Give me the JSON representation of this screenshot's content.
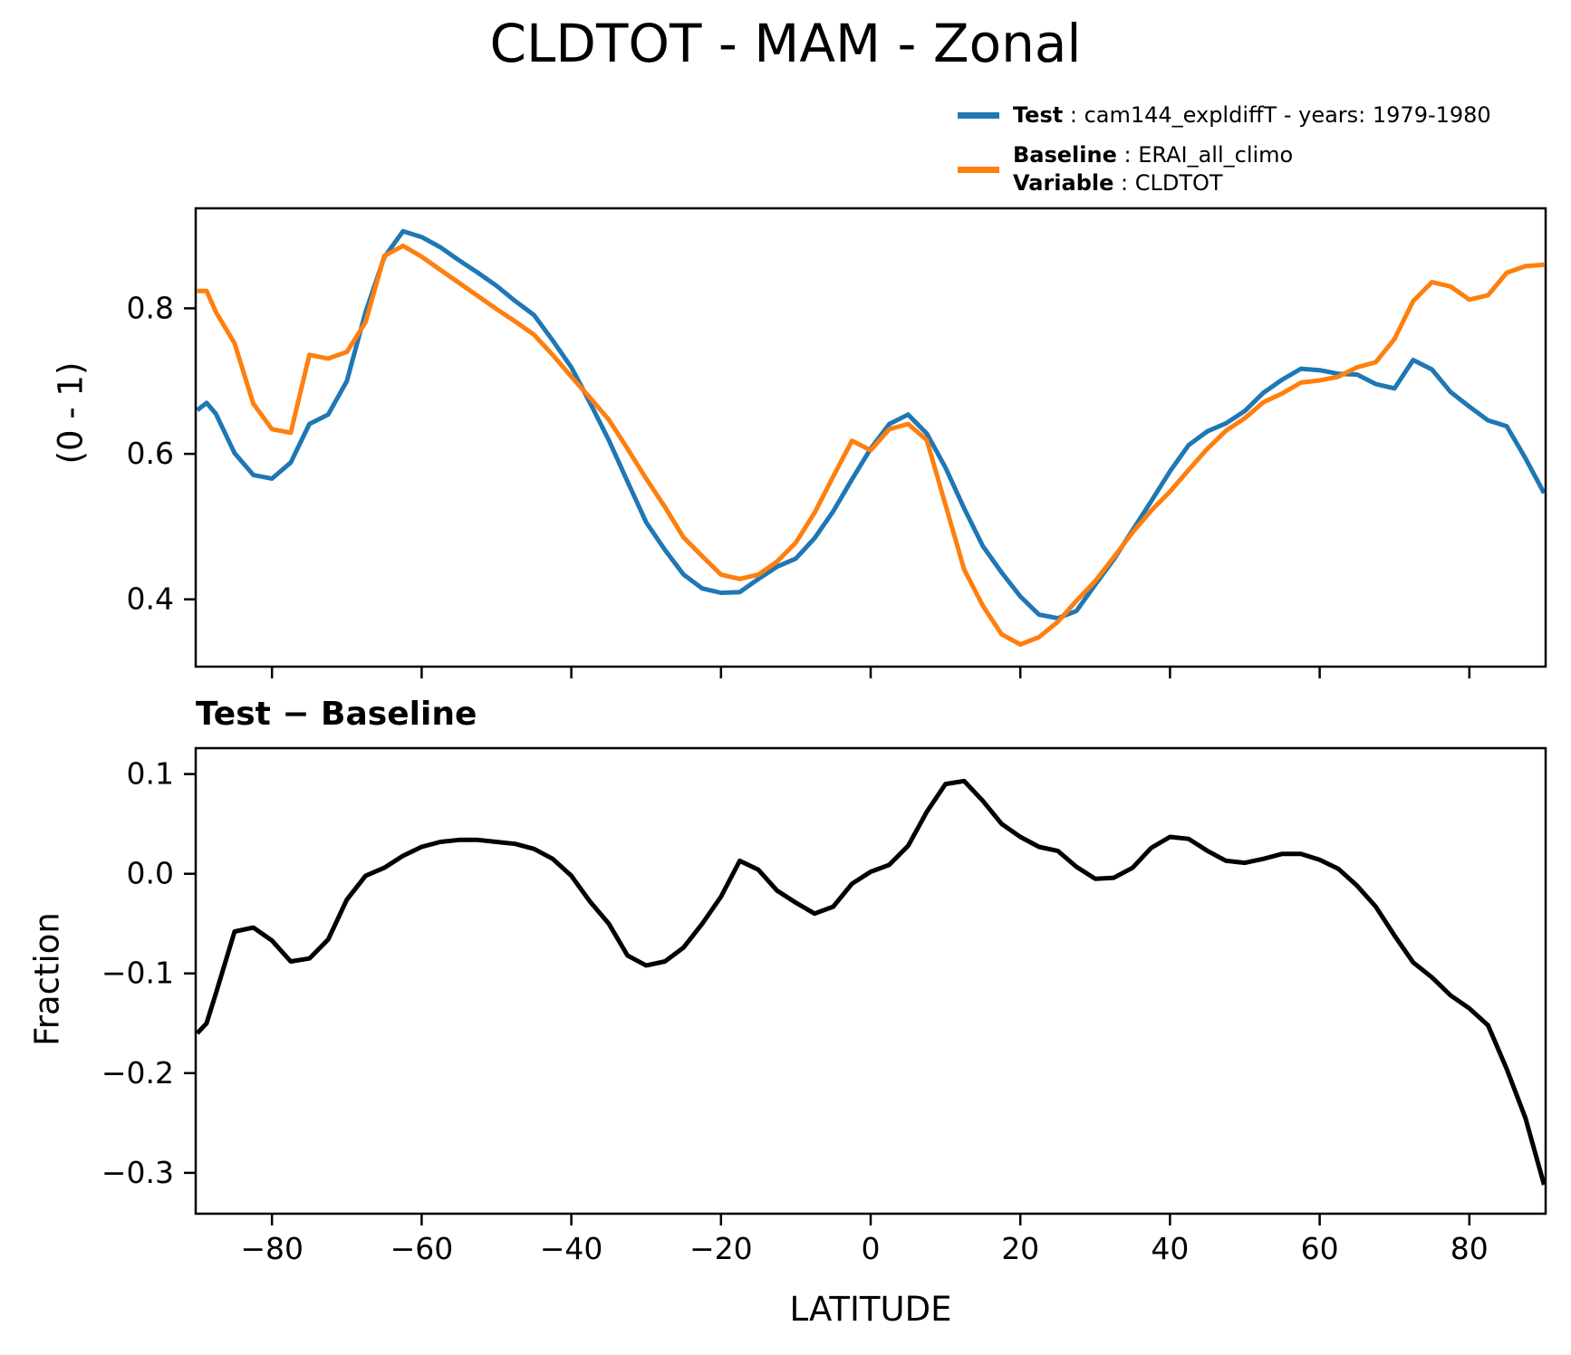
{
  "figure_title": "CLDTOT - MAM - Zonal",
  "legend": {
    "test_name": "Test",
    "test_desc": " : cam144_expldiffT - years: 1979-1980",
    "test_color": "#1f77b4",
    "baseline_name": "Baseline",
    "baseline_desc": " : ERAI_all_climo",
    "variable_name": "Variable",
    "variable_desc": " : CLDTOT",
    "baseline_color": "#ff7f0e"
  },
  "chart_data": {
    "type": "line",
    "x_axis_label": "LATITUDE",
    "grid": false,
    "lat": [
      -90,
      -88.75,
      -87.5,
      -85,
      -82.5,
      -80,
      -77.5,
      -75,
      -72.5,
      -70,
      -67.5,
      -65,
      -62.5,
      -60,
      -57.5,
      -55,
      -52.5,
      -50,
      -47.5,
      -45,
      -42.5,
      -40,
      -37.5,
      -35,
      -32.5,
      -30,
      -27.5,
      -25,
      -22.5,
      -20,
      -17.5,
      -15,
      -12.5,
      -10,
      -7.5,
      -5,
      -2.5,
      0,
      2.5,
      5,
      7.5,
      10,
      12.5,
      15,
      17.5,
      20,
      22.5,
      25,
      27.5,
      30,
      32.5,
      35,
      37.5,
      40,
      42.5,
      45,
      47.5,
      50,
      52.5,
      55,
      57.5,
      60,
      62.5,
      65,
      67.5,
      70,
      72.5,
      75,
      77.5,
      80,
      82.5,
      85,
      87.5,
      90
    ],
    "panels": [
      {
        "name": "zonal-mean-panel",
        "ylabel": "(0 - 1)",
        "xlim": [
          -90.2,
          90.2
        ],
        "ylim": [
          0.3075,
          0.9375
        ],
        "xticks": {
          "values": [
            -80,
            -60,
            -40,
            -20,
            0,
            20,
            40,
            60,
            80
          ],
          "labels": null
        },
        "yticks": {
          "values": [
            0.8,
            0.6,
            0.4
          ],
          "labels": [
            "0.8",
            "0.6",
            "0.4"
          ]
        },
        "series": [
          {
            "name": "Test",
            "data_name": "test-line",
            "color": "#1f77b4",
            "width": 5,
            "values": [
              0.66,
              0.67,
              0.655,
              0.601,
              0.571,
              0.566,
              0.588,
              0.641,
              0.654,
              0.7,
              0.795,
              0.87,
              0.906,
              0.898,
              0.884,
              0.866,
              0.849,
              0.831,
              0.81,
              0.791,
              0.756,
              0.719,
              0.67,
              0.619,
              0.562,
              0.506,
              0.468,
              0.434,
              0.415,
              0.409,
              0.41,
              0.428,
              0.445,
              0.456,
              0.484,
              0.521,
              0.565,
              0.607,
              0.641,
              0.654,
              0.628,
              0.581,
              0.525,
              0.473,
              0.437,
              0.404,
              0.379,
              0.374,
              0.384,
              0.42,
              0.455,
              0.495,
              0.535,
              0.576,
              0.612,
              0.631,
              0.642,
              0.659,
              0.684,
              0.702,
              0.717,
              0.715,
              0.71,
              0.709,
              0.696,
              0.69,
              0.729,
              0.716,
              0.685,
              0.665,
              0.646,
              0.638,
              0.594,
              0.546
            ]
          },
          {
            "name": "Baseline",
            "data_name": "baseline-line",
            "color": "#ff7f0e",
            "width": 5,
            "values": [
              0.824,
              0.824,
              0.795,
              0.752,
              0.669,
              0.634,
              0.629,
              0.736,
              0.731,
              0.74,
              0.781,
              0.872,
              0.886,
              0.871,
              0.853,
              0.835,
              0.817,
              0.799,
              0.782,
              0.764,
              0.736,
              0.706,
              0.677,
              0.647,
              0.607,
              0.566,
              0.527,
              0.485,
              0.459,
              0.434,
              0.428,
              0.434,
              0.452,
              0.478,
              0.519,
              0.569,
              0.618,
              0.605,
              0.634,
              0.641,
              0.619,
              0.53,
              0.441,
              0.391,
              0.352,
              0.338,
              0.348,
              0.369,
              0.398,
              0.425,
              0.458,
              0.492,
              0.522,
              0.548,
              0.578,
              0.607,
              0.632,
              0.649,
              0.671,
              0.683,
              0.698,
              0.701,
              0.706,
              0.719,
              0.726,
              0.758,
              0.81,
              0.836,
              0.83,
              0.812,
              0.818,
              0.849,
              0.858,
              0.86
            ]
          }
        ]
      },
      {
        "name": "difference-panel",
        "title": "Test − Baseline",
        "ylabel": "Fraction",
        "xlim": [
          -90.2,
          90.2
        ],
        "ylim": [
          -0.341,
          0.126
        ],
        "xticks": {
          "values": [
            -80,
            -60,
            -40,
            -20,
            0,
            20,
            40,
            60,
            80
          ],
          "labels": [
            "−80",
            "−60",
            "−40",
            "−20",
            "0",
            "20",
            "40",
            "60",
            "80"
          ]
        },
        "yticks": {
          "values": [
            0.1,
            0.0,
            -0.1,
            -0.2,
            -0.3
          ],
          "labels": [
            "0.1",
            "0.0",
            "−0.1",
            "−0.2",
            "−0.3"
          ]
        },
        "series": [
          {
            "name": "Test − Baseline",
            "data_name": "diff-line",
            "color": "#000000",
            "width": 5,
            "values": [
              -0.16,
              -0.15,
              -0.12,
              -0.058,
              -0.054,
              -0.067,
              -0.088,
              -0.085,
              -0.066,
              -0.026,
              -0.002,
              0.006,
              0.018,
              0.027,
              0.032,
              0.034,
              0.034,
              0.032,
              0.03,
              0.025,
              0.015,
              -0.002,
              -0.028,
              -0.05,
              -0.082,
              -0.092,
              -0.088,
              -0.074,
              -0.05,
              -0.023,
              0.013,
              0.004,
              -0.017,
              -0.029,
              -0.04,
              -0.033,
              -0.01,
              0.002,
              0.009,
              0.028,
              0.062,
              0.09,
              0.093,
              0.073,
              0.05,
              0.037,
              0.027,
              0.023,
              0.007,
              -0.005,
              -0.004,
              0.006,
              0.026,
              0.037,
              0.035,
              0.023,
              0.013,
              0.011,
              0.015,
              0.02,
              0.02,
              0.014,
              0.005,
              -0.012,
              -0.033,
              -0.062,
              -0.089,
              -0.104,
              -0.122,
              -0.135,
              -0.152,
              -0.196,
              -0.245,
              -0.312
            ]
          }
        ]
      }
    ]
  }
}
